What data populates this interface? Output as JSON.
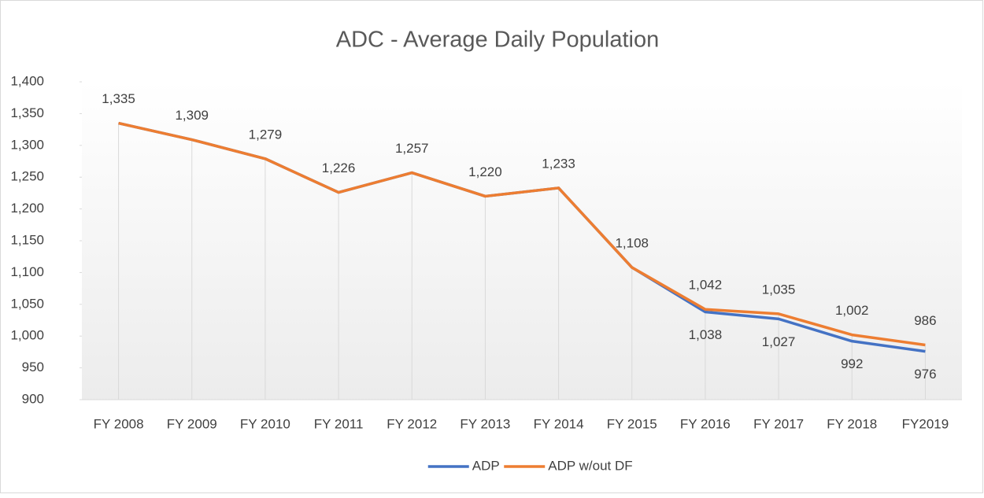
{
  "chart_data": {
    "type": "line",
    "title": "ADC - Average Daily Population",
    "categories": [
      "FY 2008",
      "FY 2009",
      "FY 2010",
      "FY 2011",
      "FY 2012",
      "FY 2013",
      "FY 2014",
      "FY 2015",
      "FY 2016",
      "FY 2017",
      "FY 2018",
      "FY2019"
    ],
    "series": [
      {
        "name": "ADP",
        "color": "#4472c4",
        "values": [
          1335,
          1309,
          1279,
          1226,
          1257,
          1220,
          1233,
          1108,
          1038,
          1027,
          992,
          976
        ],
        "value_labels": [
          null,
          null,
          null,
          null,
          null,
          null,
          null,
          null,
          "1,038",
          "1,027",
          "992",
          "976"
        ]
      },
      {
        "name": "ADP w/out DF",
        "color": "#ed7d31",
        "values": [
          1335,
          1309,
          1279,
          1226,
          1257,
          1220,
          1233,
          1108,
          1042,
          1035,
          1002,
          986
        ],
        "value_labels": [
          "1,335",
          "1,309",
          "1,279",
          "1,226",
          "1,257",
          "1,220",
          "1,233",
          "1,108",
          "1,042",
          "1,035",
          "1,002",
          "986"
        ]
      }
    ],
    "ylim": [
      900,
      1400
    ],
    "yticks": [
      900,
      950,
      {
        "value": 1000,
        "label": "1,000"
      },
      {
        "value": 1050,
        "label": "1,050"
      },
      {
        "value": 1100,
        "label": "1,100"
      },
      {
        "value": 1150,
        "label": "1,150"
      },
      {
        "value": 1200,
        "label": "1,200"
      },
      {
        "value": 1250,
        "label": "1,250"
      },
      {
        "value": 1300,
        "label": "1,300"
      },
      {
        "value": 1350,
        "label": "1,350"
      },
      {
        "value": 1400,
        "label": "1,400"
      }
    ],
    "drop_lines": true,
    "legend": "bottom"
  }
}
